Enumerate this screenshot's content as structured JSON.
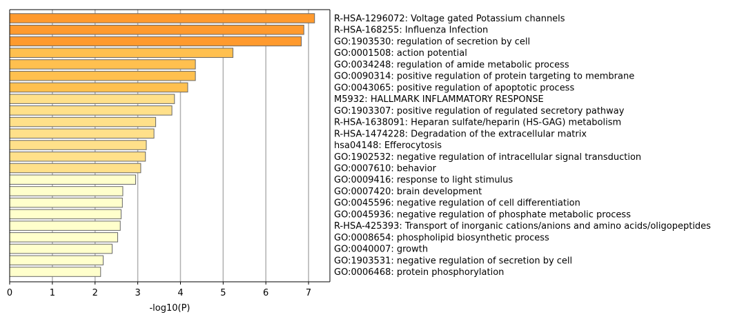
{
  "chart_data": {
    "type": "bar",
    "orientation": "horizontal",
    "xlabel": "-log10(P)",
    "ylabel": "",
    "title": "",
    "xlim": [
      0,
      7.5
    ],
    "xticks": [
      "0",
      "1",
      "2",
      "3",
      "4",
      "5",
      "6",
      "7"
    ],
    "grid": "vertical major gridlines",
    "categories": [
      "R-HSA-1296072: Voltage gated Potassium channels",
      "R-HSA-168255: Influenza Infection",
      "GO:1903530: regulation of secretion by cell",
      "GO:0001508: action potential",
      "GO:0034248: regulation of amide metabolic process",
      "GO:0090314: positive regulation of protein targeting to membrane",
      "GO:0043065: positive regulation of apoptotic process",
      "M5932: HALLMARK INFLAMMATORY RESPONSE",
      "GO:1903307: positive regulation of regulated secretory pathway",
      "R-HSA-1638091: Heparan sulfate/heparin (HS-GAG) metabolism",
      "R-HSA-1474228: Degradation of the extracellular matrix",
      "hsa04148: Efferocytosis",
      "GO:1902532: negative regulation of intracellular signal transduction",
      "GO:0007610: behavior",
      "GO:0009416: response to light stimulus",
      "GO:0007420: brain development",
      "GO:0045596: negative regulation of cell differentiation",
      "GO:0045936: negative regulation of phosphate metabolic process",
      "R-HSA-425393: Transport of inorganic cations/anions and amino acids/oligopeptides",
      "GO:0008654: phospholipid biosynthetic process",
      "GO:0040007: growth",
      "GO:1903531: negative regulation of secretion by cell",
      "GO:0006468: protein phosphorylation"
    ],
    "values": [
      7.14,
      6.89,
      6.83,
      5.23,
      4.35,
      4.35,
      4.17,
      3.86,
      3.8,
      3.42,
      3.38,
      3.2,
      3.18,
      3.07,
      2.95,
      2.65,
      2.64,
      2.61,
      2.59,
      2.53,
      2.4,
      2.19,
      2.13
    ],
    "colors": [
      "#ff9a2e",
      "#ff9a2e",
      "#ff9a2e",
      "#ffc04f",
      "#ffc04f",
      "#ffc04f",
      "#ffc04f",
      "#ffe08a",
      "#ffe08a",
      "#ffe08a",
      "#ffe08a",
      "#ffe08a",
      "#ffe08a",
      "#ffe08a",
      "#ffffcc",
      "#ffffcc",
      "#ffffcc",
      "#ffffcc",
      "#ffffcc",
      "#ffffcc",
      "#ffffcc",
      "#ffffcc",
      "#ffffcc"
    ],
    "bar_edge_color": "#666666",
    "grid_color": "#b0b0b0"
  }
}
